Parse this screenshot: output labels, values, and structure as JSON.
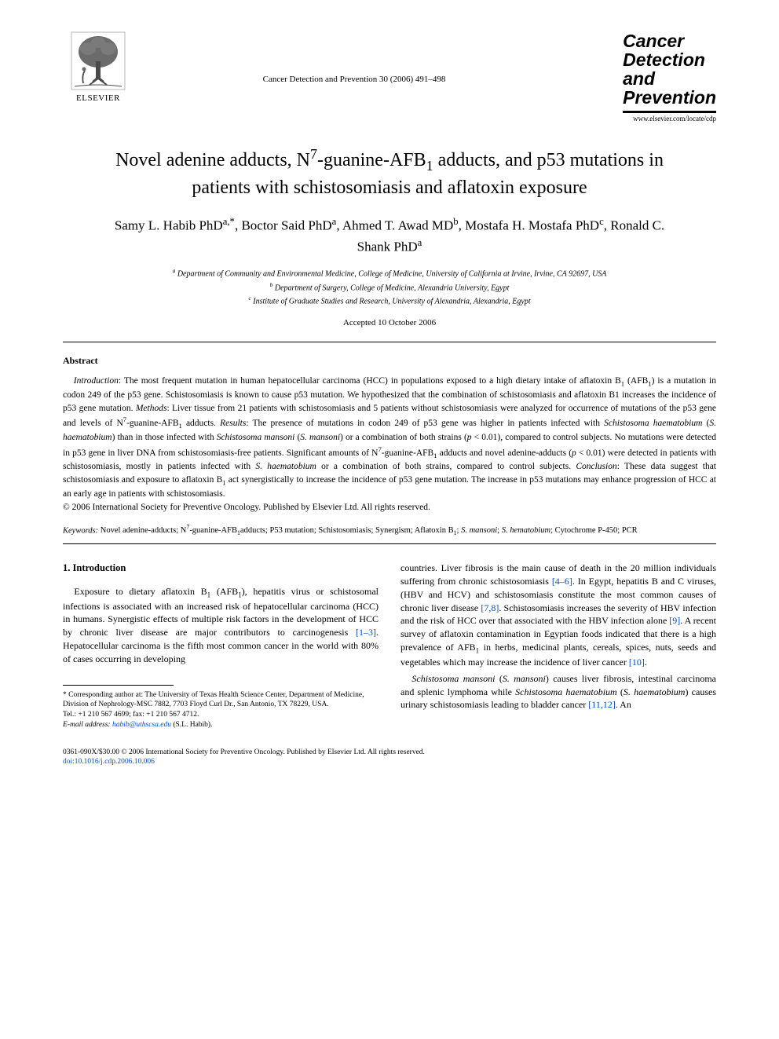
{
  "header": {
    "publisher_name": "ELSEVIER",
    "journal_ref": "Cancer Detection and Prevention 30 (2006) 491–498",
    "brand_line1": "Cancer",
    "brand_line2": "Detection",
    "brand_line3": "and",
    "brand_line4": "Prevention",
    "brand_url": "www.elsevier.com/locate/cdp"
  },
  "title_html": "Novel adenine adducts, N<sup>7</sup>-guanine-AFB<sub>1</sub> adducts, and p53 mutations in patients with schistosomiasis and aflatoxin exposure",
  "authors_html": "Samy L. Habib PhD<sup>a,*</sup>, Boctor Said PhD<sup>a</sup>, Ahmed T. Awad MD<sup>b</sup>, Mostafa H. Mostafa PhD<sup>c</sup>, Ronald C. Shank PhD<sup>a</sup>",
  "affiliations": {
    "a": "Department of Community and Environmental Medicine, College of Medicine, University of California at Irvine, Irvine, CA 92697, USA",
    "b": "Department of Surgery, College of Medicine, Alexandria University, Egypt",
    "c": "Institute of Graduate Studies and Research, University of Alexandria, Alexandria, Egypt"
  },
  "accepted": "Accepted 10 October 2006",
  "abstract": {
    "heading": "Abstract",
    "body_html": "<span class=\"run\">Introduction</span>: The most frequent mutation in human hepatocellular carcinoma (HCC) in populations exposed to a high dietary intake of aflatoxin B<sub>1</sub> (AFB<sub>1</sub>) is a mutation in codon 249 of the p53 gene. Schistosomiasis is known to cause p53 mutation. We hypothesized that the combination of schistosomiasis and aflatoxin B1 increases the incidence of p53 gene mutation. <span class=\"run\">Methods</span>: Liver tissue from 21 patients with schistosomiasis and 5 patients without schistosomiasis were analyzed for occurrence of mutations of the p53 gene and levels of N<sup>7</sup>-guanine-AFB<sub>1</sub> adducts. <span class=\"run\">Results</span>: The presence of mutations in codon 249 of p53 gene was higher in patients infected with <i>Schistosoma haematobium</i> (<i>S. haematobium</i>) than in those infected with <i>Schistosoma mansoni</i> (<i>S. mansoni</i>) or a combination of both strains (<i>p</i> &lt; 0.01), compared to control subjects. No mutations were detected in p53 gene in liver DNA from schistosomiasis-free patients. Significant amounts of N<sup>7</sup>-guanine-AFB<sub>1</sub> adducts and novel adenine-adducts (<i>p</i> &lt; 0.01) were detected in patients with schistosomiasis, mostly in patients infected with <i>S. haematobium</i> or a combination of both strains, compared to control subjects. <span class=\"run\">Conclusion</span>: These data suggest that schistosomiasis and exposure to aflatoxin B<sub>1</sub> act synergistically to increase the incidence of p53 gene mutation. The increase in p53 mutations may enhance progression of HCC at an early age in patients with schistosomiasis.",
    "copyright": "© 2006 International Society for Preventive Oncology. Published by Elsevier Ltd. All rights reserved."
  },
  "keywords": {
    "label": "Keywords:",
    "text_html": "Novel adenine-adducts; N<sup>7</sup>-guanine-AFB<sub>1</sub>adducts; P53 mutation; Schistosomiasis; Synergism; Aflatoxin B<sub>1</sub>; <i>S. mansoni</i>; <i>S. hematobium</i>; Cytochrome P-450; PCR"
  },
  "body": {
    "section_number": "1.",
    "section_title": "Introduction",
    "col1_html": "Exposure to dietary aflatoxin B<sub>1</sub> (AFB<sub>1</sub>), hepatitis virus or schistosomal infections is associated with an increased risk of hepatocellular carcinoma (HCC) in humans. Synergistic effects of multiple risk factors in the development of HCC by chronic liver disease are major contributors to carcinogenesis <span class=\"ref-link\">[1–3]</span>. Hepatocellular carcinoma is the fifth most common cancer in the world with 80% of cases occurring in developing",
    "col2_html": "countries. Liver fibrosis is the main cause of death in the 20 million individuals suffering from chronic schistosomiasis <span class=\"ref-link\">[4–6]</span>. In Egypt, hepatitis B and C viruses, (HBV and HCV) and schistosomiasis constitute the most common causes of chronic liver disease <span class=\"ref-link\">[7,8]</span>. Schistosomiasis increases the severity of HBV infection and the risk of HCC over that associated with the HBV infection alone <span class=\"ref-link\">[9]</span>. A recent survey of aflatoxin contamination in Egyptian foods indicated that there is a high prevalence of AFB<sub>1</sub> in herbs, medicinal plants, cereals, spices, nuts, seeds and vegetables which may increase the incidence of liver cancer <span class=\"ref-link\">[10]</span>.",
    "col2_para2_html": "<i>Schistosoma mansoni</i> (<i>S. mansoni</i>) causes liver fibrosis, intestinal carcinoma and splenic lymphoma while <i>Schistosoma haematobium</i> (<i>S. haematobium</i>) causes urinary schistosomiasis leading to bladder cancer <span class=\"ref-link\">[11,12]</span>. An"
  },
  "footnote": {
    "corr_html": "* Corresponding author at: The University of Texas Health Science Center, Department of Medicine, Division of Nephrology-MSC 7882, 7703 Floyd Curl Dr., San Antonio, TX 78229, USA.",
    "tel": "Tel.: +1 210 567 4699; fax: +1 210 567 4712.",
    "email_label": "E-mail address:",
    "email": "habib@uthscsa.edu",
    "email_tail": "(S.L. Habib)."
  },
  "footer": {
    "line1": "0361-090X/$30.00 © 2006 International Society for Preventive Oncology. Published by Elsevier Ltd. All rights reserved.",
    "doi": "doi:10.1016/j.cdp.2006.10.006"
  },
  "colors": {
    "link": "#0050c8",
    "text": "#000000",
    "bg": "#ffffff"
  },
  "logo": {
    "tree_fill": "#6b6b6b",
    "trunk_fill": "#4a4a4a",
    "stroke": "#3b3b3b"
  }
}
